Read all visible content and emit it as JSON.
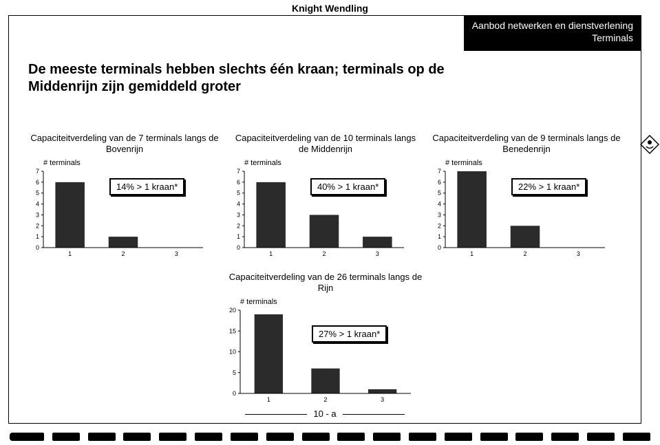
{
  "page_title": "Knight Wendling",
  "black_box": {
    "line1": "Aanbod netwerken en dienstverlening",
    "line2": "Terminals"
  },
  "headline": "De meeste terminals hebben slechts één kraan; terminals op de Middenrijn zijn gemiddeld groter",
  "charts_top": [
    {
      "title": "Capaciteitverdeling van de 7 terminals langs de Bovenrijn",
      "y_label": "# terminals",
      "y_max": 7,
      "categories": [
        "1",
        "2",
        "3"
      ],
      "values": [
        6,
        1,
        0
      ],
      "bar_color": "#2b2b2b",
      "annotation": "14% > 1 kraan*"
    },
    {
      "title": "Capaciteitverdeling van de 10 terminals langs de Middenrijn",
      "y_label": "# terminals",
      "y_max": 7,
      "categories": [
        "1",
        "2",
        "3"
      ],
      "values": [
        6,
        3,
        1
      ],
      "bar_color": "#2b2b2b",
      "annotation": "40% > 1 kraan*"
    },
    {
      "title": "Capaciteitverdeling van de 9 terminals langs de Benedenrijn",
      "y_label": "# terminals",
      "y_max": 7,
      "categories": [
        "1",
        "2",
        "3"
      ],
      "values": [
        7,
        2,
        0
      ],
      "bar_color": "#2b2b2b",
      "annotation": "22% > 1 kraan*"
    }
  ],
  "chart_bottom": {
    "title": "Capaciteitverdeling van de 26 terminals langs de Rijn",
    "y_label": "# terminals",
    "y_max": 20,
    "y_step": 5,
    "categories": [
      "1",
      "2",
      "3"
    ],
    "values": [
      19,
      6,
      1
    ],
    "bar_color": "#2b2b2b",
    "annotation": "27% > 1 kraan*"
  },
  "page_number": "10 - a",
  "style": {
    "axis_color": "#000000",
    "tick_fontsize": 10,
    "title_fontsize": 13
  }
}
